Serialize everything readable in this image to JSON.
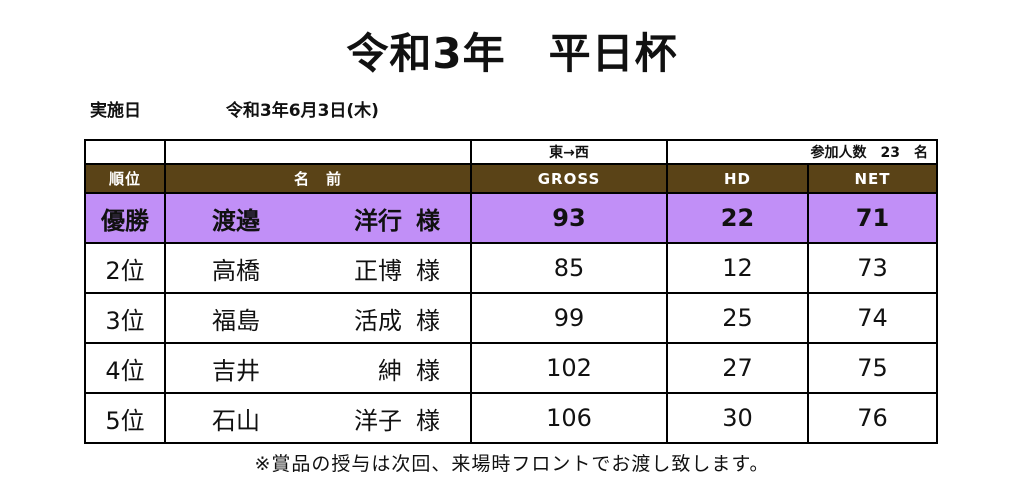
{
  "title": "令和3年　平日杯",
  "event_date": {
    "label": "実施日",
    "value": "令和3年6月3日(木)"
  },
  "table": {
    "course": "東→西",
    "participants": "参加人数　23　名",
    "headers": {
      "rank": "順位",
      "name": "名　前",
      "gross": "GROSS",
      "hd": "HD",
      "net": "NET"
    },
    "rows": [
      {
        "rank": "優勝",
        "surname": "渡邉",
        "given": "洋行",
        "honorific": "様",
        "gross": "93",
        "hd": "22",
        "net": "71"
      },
      {
        "rank": "2位",
        "surname": "高橋",
        "given": "正博",
        "honorific": "様",
        "gross": "85",
        "hd": "12",
        "net": "73"
      },
      {
        "rank": "3位",
        "surname": "福島",
        "given": "活成",
        "honorific": "様",
        "gross": "99",
        "hd": "25",
        "net": "74"
      },
      {
        "rank": "4位",
        "surname": "吉井",
        "given": "紳",
        "honorific": "様",
        "gross": "102",
        "hd": "27",
        "net": "75"
      },
      {
        "rank": "5位",
        "surname": "石山",
        "given": "洋子",
        "honorific": "様",
        "gross": "106",
        "hd": "30",
        "net": "76"
      }
    ]
  },
  "colors": {
    "header_bg": "#5a4317",
    "winner_bg": "#c18ff7"
  },
  "footnote": "※賞品の授与は次回、来場時フロントでお渡し致します。"
}
